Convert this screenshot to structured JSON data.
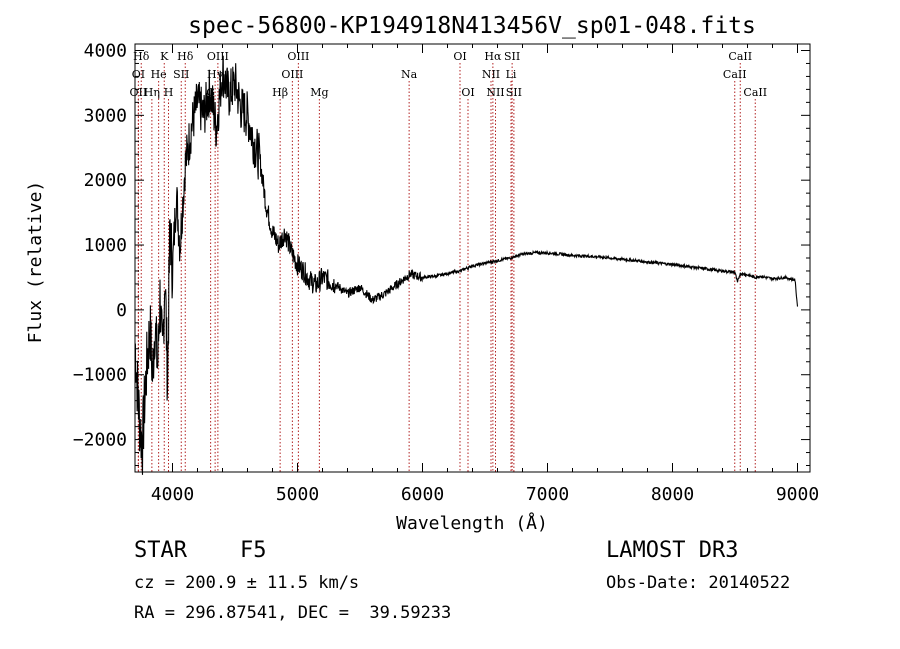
{
  "chart_data": {
    "type": "line",
    "title": "spec-56800-KP194918N413456V_sp01-048.fits",
    "xlabel": "Wavelength (Å)",
    "ylabel": "Flux (relative)",
    "xlim": [
      3700,
      9100
    ],
    "ylim": [
      -2500,
      4100
    ],
    "xticks": [
      4000,
      5000,
      6000,
      7000,
      8000,
      9000
    ],
    "yticks": [
      -2000,
      -1000,
      0,
      1000,
      2000,
      3000,
      4000
    ],
    "line_color": "#000000",
    "marker_color": "#b22222",
    "spectrum": {
      "x": [
        3700,
        3720,
        3740,
        3760,
        3780,
        3800,
        3820,
        3840,
        3860,
        3880,
        3900,
        3920,
        3940,
        3960,
        3980,
        4000,
        4030,
        4060,
        4100,
        4150,
        4200,
        4250,
        4300,
        4350,
        4400,
        4450,
        4500,
        4550,
        4600,
        4650,
        4700,
        4750,
        4800,
        4850,
        4900,
        4950,
        5000,
        5050,
        5100,
        5150,
        5200,
        5300,
        5400,
        5500,
        5600,
        5700,
        5800,
        5900,
        6000,
        6100,
        6200,
        6300,
        6400,
        6500,
        6600,
        6700,
        6800,
        6900,
        7000,
        7100,
        7200,
        7400,
        7600,
        7800,
        8000,
        8200,
        8400,
        8500,
        8520,
        8540,
        8600,
        8660,
        8700,
        8800,
        8900,
        8980,
        9000
      ],
      "y": [
        -500,
        -1200,
        -1800,
        -2050,
        -1300,
        -700,
        -300,
        -1000,
        -200,
        -900,
        200,
        -800,
        600,
        -1100,
        1300,
        600,
        1800,
        1000,
        2200,
        2800,
        3200,
        3000,
        3400,
        2800,
        3700,
        3300,
        3500,
        3100,
        3000,
        2600,
        2300,
        1600,
        1200,
        1000,
        1200,
        900,
        700,
        600,
        450,
        380,
        500,
        400,
        250,
        350,
        150,
        250,
        400,
        550,
        500,
        520,
        560,
        600,
        680,
        720,
        760,
        800,
        860,
        880,
        880,
        860,
        840,
        820,
        780,
        740,
        700,
        650,
        600,
        580,
        420,
        560,
        540,
        500,
        520,
        480,
        500,
        460,
        50
      ]
    },
    "lines_top_row": [
      {
        "label": "Hδ",
        "x": 3750
      },
      {
        "label": "K",
        "x": 3934
      },
      {
        "label": "Hδ",
        "x": 4102
      },
      {
        "label": "OIII",
        "x": 4363
      },
      {
        "label": "OIII",
        "x": 5007
      },
      {
        "label": "OI",
        "x": 6300
      },
      {
        "label": "Hα",
        "x": 6563
      },
      {
        "label": "SII",
        "x": 6717
      },
      {
        "label": "CaII",
        "x": 8542
      }
    ],
    "lines_mid_row": [
      {
        "label": "OI",
        "x": 3727
      },
      {
        "label": "He",
        "x": 3889
      },
      {
        "label": "SII",
        "x": 4070
      },
      {
        "label": "Hγ",
        "x": 4341
      },
      {
        "label": "OIII",
        "x": 4959
      },
      {
        "label": "Na",
        "x": 5893
      },
      {
        "label": "NII",
        "x": 6548
      },
      {
        "label": "Li",
        "x": 6708
      },
      {
        "label": "CaII",
        "x": 8498
      }
    ],
    "lines_bottom_row": [
      {
        "label": "OII",
        "x": 3727
      },
      {
        "label": "Hη",
        "x": 3835
      },
      {
        "label": "H",
        "x": 3968
      },
      {
        "label": "G",
        "x": 4305
      },
      {
        "label": "Hβ",
        "x": 4861
      },
      {
        "label": "Mg",
        "x": 5175
      },
      {
        "label": "OI",
        "x": 6364
      },
      {
        "label": "NII",
        "x": 6584
      },
      {
        "label": "SII",
        "x": 6731
      },
      {
        "label": "CaII",
        "x": 8662
      }
    ]
  },
  "info": {
    "object_class": "STAR",
    "subclass": "F5",
    "survey": "LAMOST DR3",
    "cz": "cz = 200.9 ± 11.5 km/s",
    "obs_date": "Obs-Date: 20140522",
    "coords": "RA = 296.87541, DEC =  39.59233"
  }
}
